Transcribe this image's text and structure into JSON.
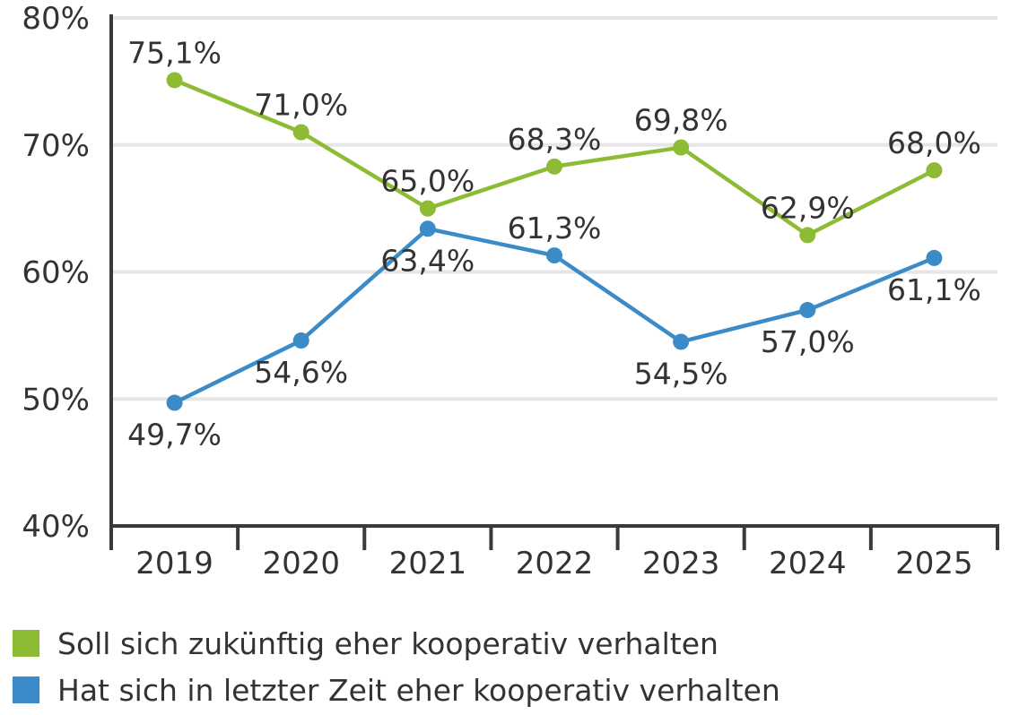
{
  "chart_data": {
    "type": "line",
    "categories": [
      "2019",
      "2020",
      "2021",
      "2022",
      "2023",
      "2024",
      "2025"
    ],
    "ylim": [
      40,
      80
    ],
    "yticks": [
      "40%",
      "50%",
      "60%",
      "70%",
      "80%"
    ],
    "ytick_values": [
      40,
      50,
      60,
      70,
      80
    ],
    "grid": true,
    "legend_position": "bottom-left",
    "series": [
      {
        "name": "Soll sich zukünftig eher kooperativ verhalten",
        "color": "#8dbb33",
        "values": [
          75.1,
          71.0,
          65.0,
          68.3,
          69.8,
          62.9,
          68.0
        ],
        "labels": [
          "75,1%",
          "71,0%",
          "65,0%",
          "68,3%",
          "69,8%",
          "62,9%",
          "68,0%"
        ]
      },
      {
        "name": "Hat sich in letzter Zeit eher kooperativ verhalten",
        "color": "#3b8bc8",
        "values": [
          49.7,
          54.6,
          63.4,
          61.3,
          54.5,
          57.0,
          61.1
        ],
        "labels": [
          "49,7%",
          "54,6%",
          "63,4%",
          "61,3%",
          "54,5%",
          "57,0%",
          "61,1%"
        ]
      }
    ]
  }
}
